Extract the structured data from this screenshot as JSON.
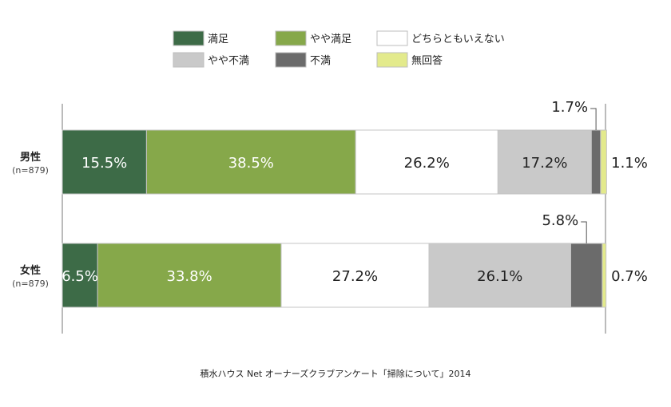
{
  "chart_data": {
    "type": "bar",
    "orientation": "horizontal-stacked-100",
    "categories": [
      {
        "label": "男性",
        "n": "(n=879)"
      },
      {
        "label": "女性",
        "n": "(n=879)"
      }
    ],
    "series": [
      {
        "name": "満足",
        "color": "#3d6b47",
        "text_color": "#ffffff",
        "values": [
          15.5,
          6.5
        ],
        "labels": [
          "15.5%",
          "6.5%"
        ]
      },
      {
        "name": "やや満足",
        "color": "#86a84a",
        "text_color": "#ffffff",
        "values": [
          38.5,
          33.8
        ],
        "labels": [
          "38.5%",
          "33.8%"
        ]
      },
      {
        "name": "どちらともいえない",
        "color": "#ffffff",
        "text_color": "#222222",
        "values": [
          26.2,
          27.2
        ],
        "labels": [
          "26.2%",
          "27.2%"
        ]
      },
      {
        "name": "やや不満",
        "color": "#c9c9c9",
        "text_color": "#222222",
        "values": [
          17.2,
          26.1
        ],
        "labels": [
          "17.2%",
          "26.1%"
        ]
      },
      {
        "name": "不満",
        "color": "#6b6b6b",
        "text_color": "#ffffff",
        "values": [
          1.7,
          5.8
        ],
        "labels": [
          "1.7%",
          "5.8%"
        ]
      },
      {
        "name": "無回答",
        "color": "#e3ea8c",
        "text_color": "#222222",
        "values": [
          1.1,
          0.7
        ],
        "labels": [
          "1.1%",
          "0.7%"
        ]
      }
    ],
    "legend_position": "top",
    "xlim": [
      0,
      100
    ],
    "grid": false
  },
  "source": "積水ハウス Net オーナーズクラブアンケート「掃除について」2014"
}
